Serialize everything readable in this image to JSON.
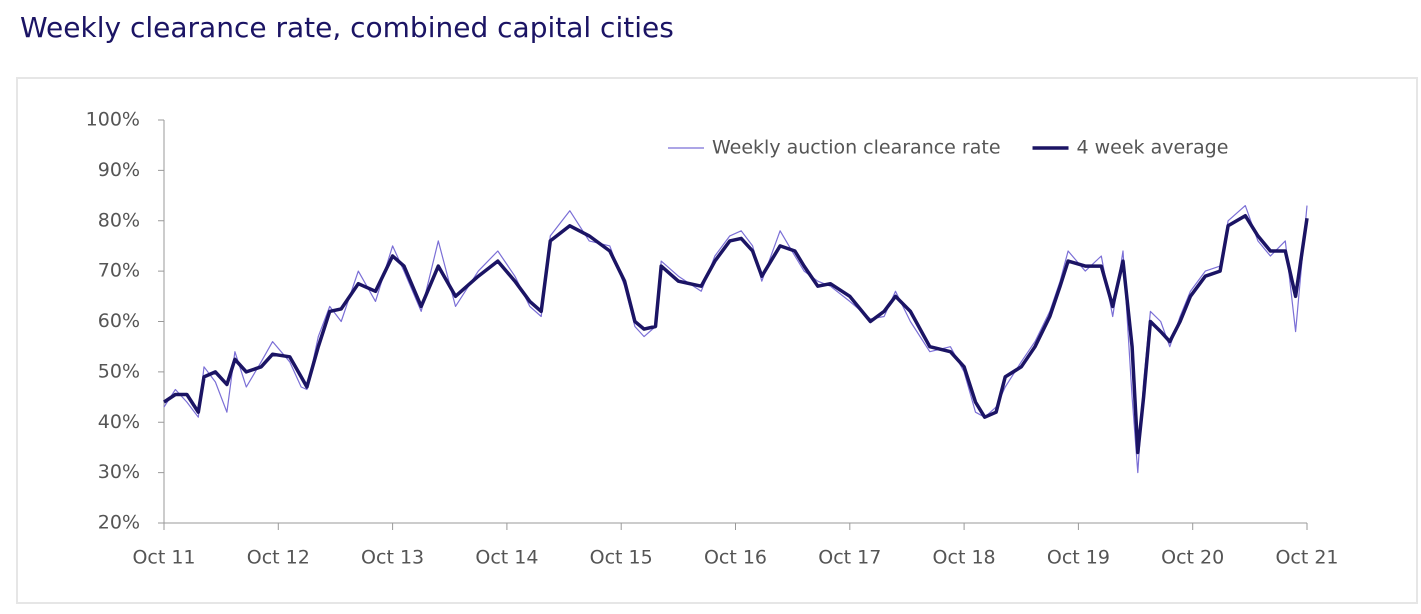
{
  "chart_data": {
    "type": "line",
    "title": "Weekly clearance rate, combined capital cities",
    "x": [
      0,
      0.1,
      0.2,
      0.3,
      0.35,
      0.45,
      0.55,
      0.62,
      0.72,
      0.85,
      0.95,
      1.1,
      1.2,
      1.25,
      1.35,
      1.45,
      1.55,
      1.7,
      1.85,
      2.0,
      2.1,
      2.25,
      2.4,
      2.55,
      2.75,
      2.92,
      3.07,
      3.2,
      3.3,
      3.38,
      3.55,
      3.72,
      3.9,
      4.03,
      4.12,
      4.2,
      4.3,
      4.35,
      4.5,
      4.7,
      4.82,
      4.95,
      5.05,
      5.15,
      5.23,
      5.39,
      5.52,
      5.6,
      5.72,
      5.83,
      6.0,
      6.18,
      6.3,
      6.4,
      6.53,
      6.7,
      6.88,
      7.0,
      7.1,
      7.18,
      7.28,
      7.36,
      7.5,
      7.62,
      7.75,
      7.84,
      7.91,
      8.06,
      8.2,
      8.3,
      8.39,
      8.47,
      8.52,
      8.57,
      8.63,
      8.72,
      8.8,
      8.89,
      8.98,
      9.11,
      9.24,
      9.31,
      9.46,
      9.57,
      9.68,
      9.81,
      9.9,
      10.0
    ],
    "series": [
      {
        "name": "Weekly auction clearance rate",
        "color": "#7b6fd6",
        "width": 1.2,
        "values": [
          43,
          46.5,
          44,
          41,
          51,
          48,
          42,
          54,
          47,
          52,
          56,
          52,
          47,
          46.5,
          57,
          63,
          60,
          70,
          64,
          75,
          70,
          62,
          76,
          63,
          70,
          74,
          69,
          63,
          61,
          77,
          82,
          76,
          75,
          67,
          59,
          57,
          59,
          72,
          69,
          66,
          73,
          77,
          78,
          75,
          68,
          78,
          73,
          70,
          68,
          67,
          64,
          60.5,
          61,
          66,
          60,
          54,
          55,
          50,
          42,
          41,
          43,
          47,
          52,
          56,
          62,
          68,
          74,
          70,
          73,
          61,
          74,
          45,
          30,
          48,
          62,
          60,
          55,
          61,
          66,
          70,
          71,
          80,
          83,
          76,
          73,
          76,
          58,
          83
        ]
      },
      {
        "name": "4 week average",
        "color": "#1b1464",
        "width": 3.5,
        "values": [
          44,
          45.5,
          45.5,
          42,
          49,
          50,
          47.5,
          52.5,
          50,
          51,
          53.5,
          53,
          49,
          47,
          55,
          62,
          62.5,
          67.5,
          66,
          73,
          71,
          63,
          71,
          65,
          69,
          72,
          68,
          64,
          62,
          76,
          79,
          77,
          74,
          68,
          60,
          58.5,
          59,
          71,
          68,
          67,
          72,
          76,
          76.5,
          74,
          69,
          75,
          74,
          71,
          67,
          67.5,
          65,
          60,
          62,
          65,
          62,
          55,
          54,
          51,
          44,
          41,
          42,
          49,
          51,
          55,
          61,
          67,
          72,
          71,
          71,
          63,
          72,
          55,
          34,
          45,
          60,
          58,
          56,
          60,
          65,
          69,
          70,
          79,
          81,
          77,
          74,
          74,
          65,
          80.5
        ]
      }
    ],
    "xlim": [
      0,
      10
    ],
    "xticks": [
      {
        "value": 0,
        "label": "Oct 11"
      },
      {
        "value": 1,
        "label": "Oct 12"
      },
      {
        "value": 2,
        "label": "Oct 13"
      },
      {
        "value": 3,
        "label": "Oct 14"
      },
      {
        "value": 4,
        "label": "Oct 15"
      },
      {
        "value": 5,
        "label": "Oct 16"
      },
      {
        "value": 6,
        "label": "Oct 17"
      },
      {
        "value": 7,
        "label": "Oct 18"
      },
      {
        "value": 8,
        "label": "Oct 19"
      },
      {
        "value": 9,
        "label": "Oct 20"
      },
      {
        "value": 10,
        "label": "Oct 21"
      }
    ],
    "ylim": [
      20,
      100
    ],
    "yticks": [
      {
        "value": 20,
        "label": "20%"
      },
      {
        "value": 30,
        "label": "30%"
      },
      {
        "value": 40,
        "label": "40%"
      },
      {
        "value": 50,
        "label": "50%"
      },
      {
        "value": 60,
        "label": "60%"
      },
      {
        "value": 70,
        "label": "70%"
      },
      {
        "value": 80,
        "label": "80%"
      },
      {
        "value": 90,
        "label": "90%"
      },
      {
        "value": 100,
        "label": "100%"
      }
    ],
    "grid": false
  }
}
